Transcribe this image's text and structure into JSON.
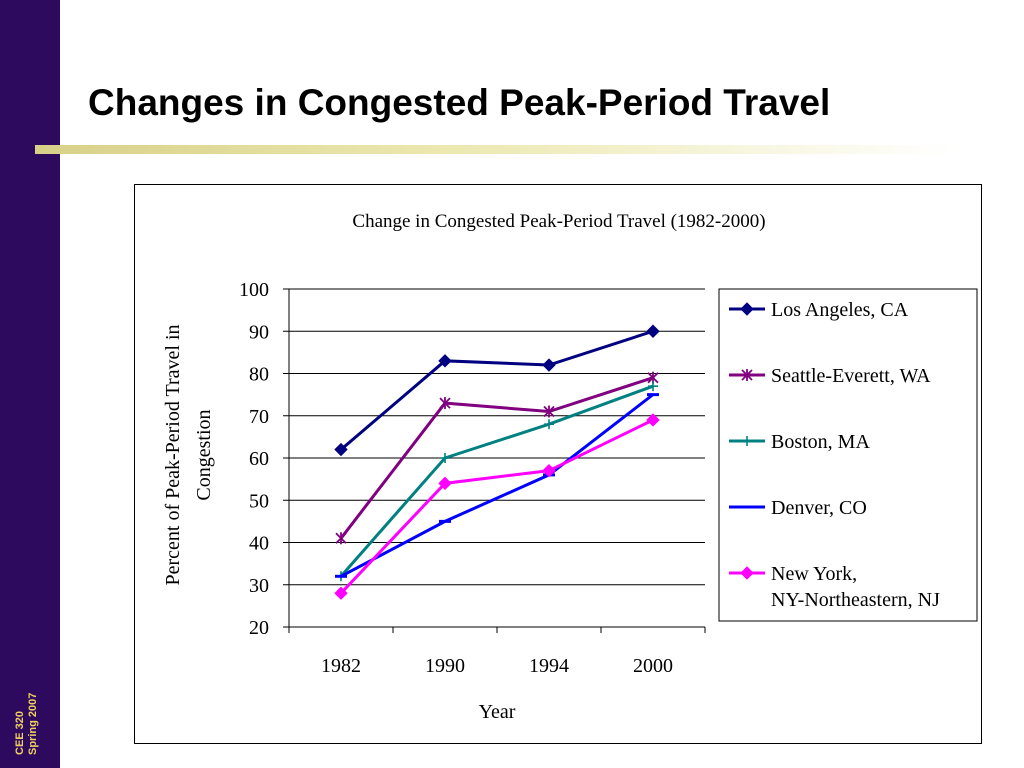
{
  "slide": {
    "title": "Changes in Congested Peak-Period Travel",
    "footer_line1": "CEE 320",
    "footer_line2": "Spring 2007"
  },
  "colors": {
    "sidebar": "#2e0a5e",
    "footer_text": "#f0d060",
    "rule": "#d8d088"
  },
  "chart_data": {
    "type": "line",
    "title": "Change in Congested Peak-Period Travel (1982-2000)",
    "xlabel": "Year",
    "ylabel": "Percent of Peak-Period Travel in Congestion",
    "categories": [
      "1982",
      "1990",
      "1994",
      "2000"
    ],
    "ylim": [
      20,
      100
    ],
    "yticks": [
      20,
      30,
      40,
      50,
      60,
      70,
      80,
      90,
      100
    ],
    "grid": true,
    "legend_position": "right",
    "series": [
      {
        "name": "Los Angeles, CA",
        "values": [
          62,
          83,
          82,
          90
        ],
        "color": "#000080",
        "marker": "diamond"
      },
      {
        "name": "Seattle-Everett, WA",
        "values": [
          41,
          73,
          71,
          79
        ],
        "color": "#800080",
        "marker": "star"
      },
      {
        "name": "Boston, MA",
        "values": [
          32,
          60,
          68,
          77
        ],
        "color": "#008080",
        "marker": "plus"
      },
      {
        "name": "Denver, CO",
        "values": [
          32,
          45,
          56,
          75
        ],
        "color": "#0000ff",
        "marker": "dash"
      },
      {
        "name": "New York, NY-Northeastern, NJ",
        "values": [
          28,
          54,
          57,
          69
        ],
        "color": "#ff00ff",
        "marker": "diamond"
      }
    ]
  }
}
